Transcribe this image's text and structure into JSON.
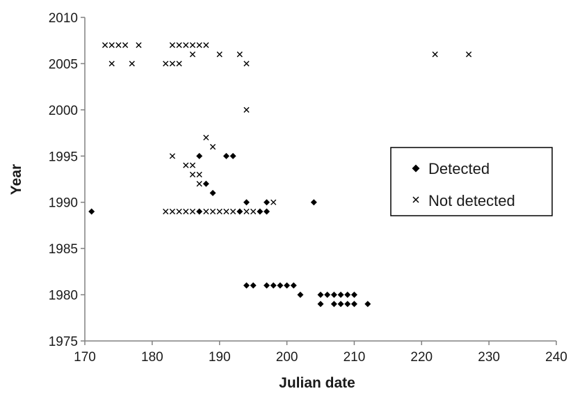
{
  "chart_data": {
    "type": "scatter",
    "title": "",
    "xlabel": "Julian date",
    "ylabel": "Year",
    "xlim": [
      170,
      240
    ],
    "ylim": [
      1975,
      2010
    ],
    "xticks": [
      170,
      180,
      190,
      200,
      210,
      220,
      230,
      240
    ],
    "yticks": [
      1975,
      1980,
      1985,
      1990,
      1995,
      2000,
      2005,
      2010
    ],
    "grid": false,
    "legend_position": "right",
    "series": [
      {
        "name": "Detected",
        "marker": "diamond",
        "color": "#000000",
        "points": [
          [
            171,
            1989
          ],
          [
            187,
            1989
          ],
          [
            193,
            1989
          ],
          [
            196,
            1989
          ],
          [
            197,
            1989
          ],
          [
            194,
            1990
          ],
          [
            197,
            1990
          ],
          [
            204,
            1990
          ],
          [
            189,
            1991
          ],
          [
            188,
            1992
          ],
          [
            187,
            1995
          ],
          [
            191,
            1995
          ],
          [
            192,
            1995
          ],
          [
            194,
            1981
          ],
          [
            195,
            1981
          ],
          [
            197,
            1981
          ],
          [
            198,
            1981
          ],
          [
            199,
            1981
          ],
          [
            200,
            1981
          ],
          [
            201,
            1981
          ],
          [
            202,
            1980
          ],
          [
            205,
            1980
          ],
          [
            206,
            1980
          ],
          [
            207,
            1980
          ],
          [
            208,
            1980
          ],
          [
            209,
            1980
          ],
          [
            210,
            1980
          ],
          [
            205,
            1979
          ],
          [
            207,
            1979
          ],
          [
            208,
            1979
          ],
          [
            209,
            1979
          ],
          [
            210,
            1979
          ],
          [
            212,
            1979
          ]
        ]
      },
      {
        "name": "Not detected",
        "marker": "x",
        "color": "#000000",
        "points": [
          [
            173,
            2007
          ],
          [
            174,
            2007
          ],
          [
            175,
            2007
          ],
          [
            176,
            2007
          ],
          [
            178,
            2007
          ],
          [
            183,
            2007
          ],
          [
            184,
            2007
          ],
          [
            185,
            2007
          ],
          [
            186,
            2007
          ],
          [
            187,
            2007
          ],
          [
            188,
            2007
          ],
          [
            186,
            2006
          ],
          [
            190,
            2006
          ],
          [
            193,
            2006
          ],
          [
            222,
            2006
          ],
          [
            227,
            2006
          ],
          [
            174,
            2005
          ],
          [
            177,
            2005
          ],
          [
            182,
            2005
          ],
          [
            183,
            2005
          ],
          [
            184,
            2005
          ],
          [
            194,
            2005
          ],
          [
            194,
            2000
          ],
          [
            188,
            1997
          ],
          [
            189,
            1996
          ],
          [
            183,
            1995
          ],
          [
            185,
            1994
          ],
          [
            186,
            1994
          ],
          [
            186,
            1993
          ],
          [
            187,
            1993
          ],
          [
            187,
            1992
          ],
          [
            198,
            1990
          ],
          [
            182,
            1989
          ],
          [
            183,
            1989
          ],
          [
            184,
            1989
          ],
          [
            185,
            1989
          ],
          [
            186,
            1989
          ],
          [
            188,
            1989
          ],
          [
            189,
            1989
          ],
          [
            190,
            1989
          ],
          [
            191,
            1989
          ],
          [
            192,
            1989
          ],
          [
            194,
            1989
          ],
          [
            195,
            1989
          ]
        ]
      }
    ]
  }
}
